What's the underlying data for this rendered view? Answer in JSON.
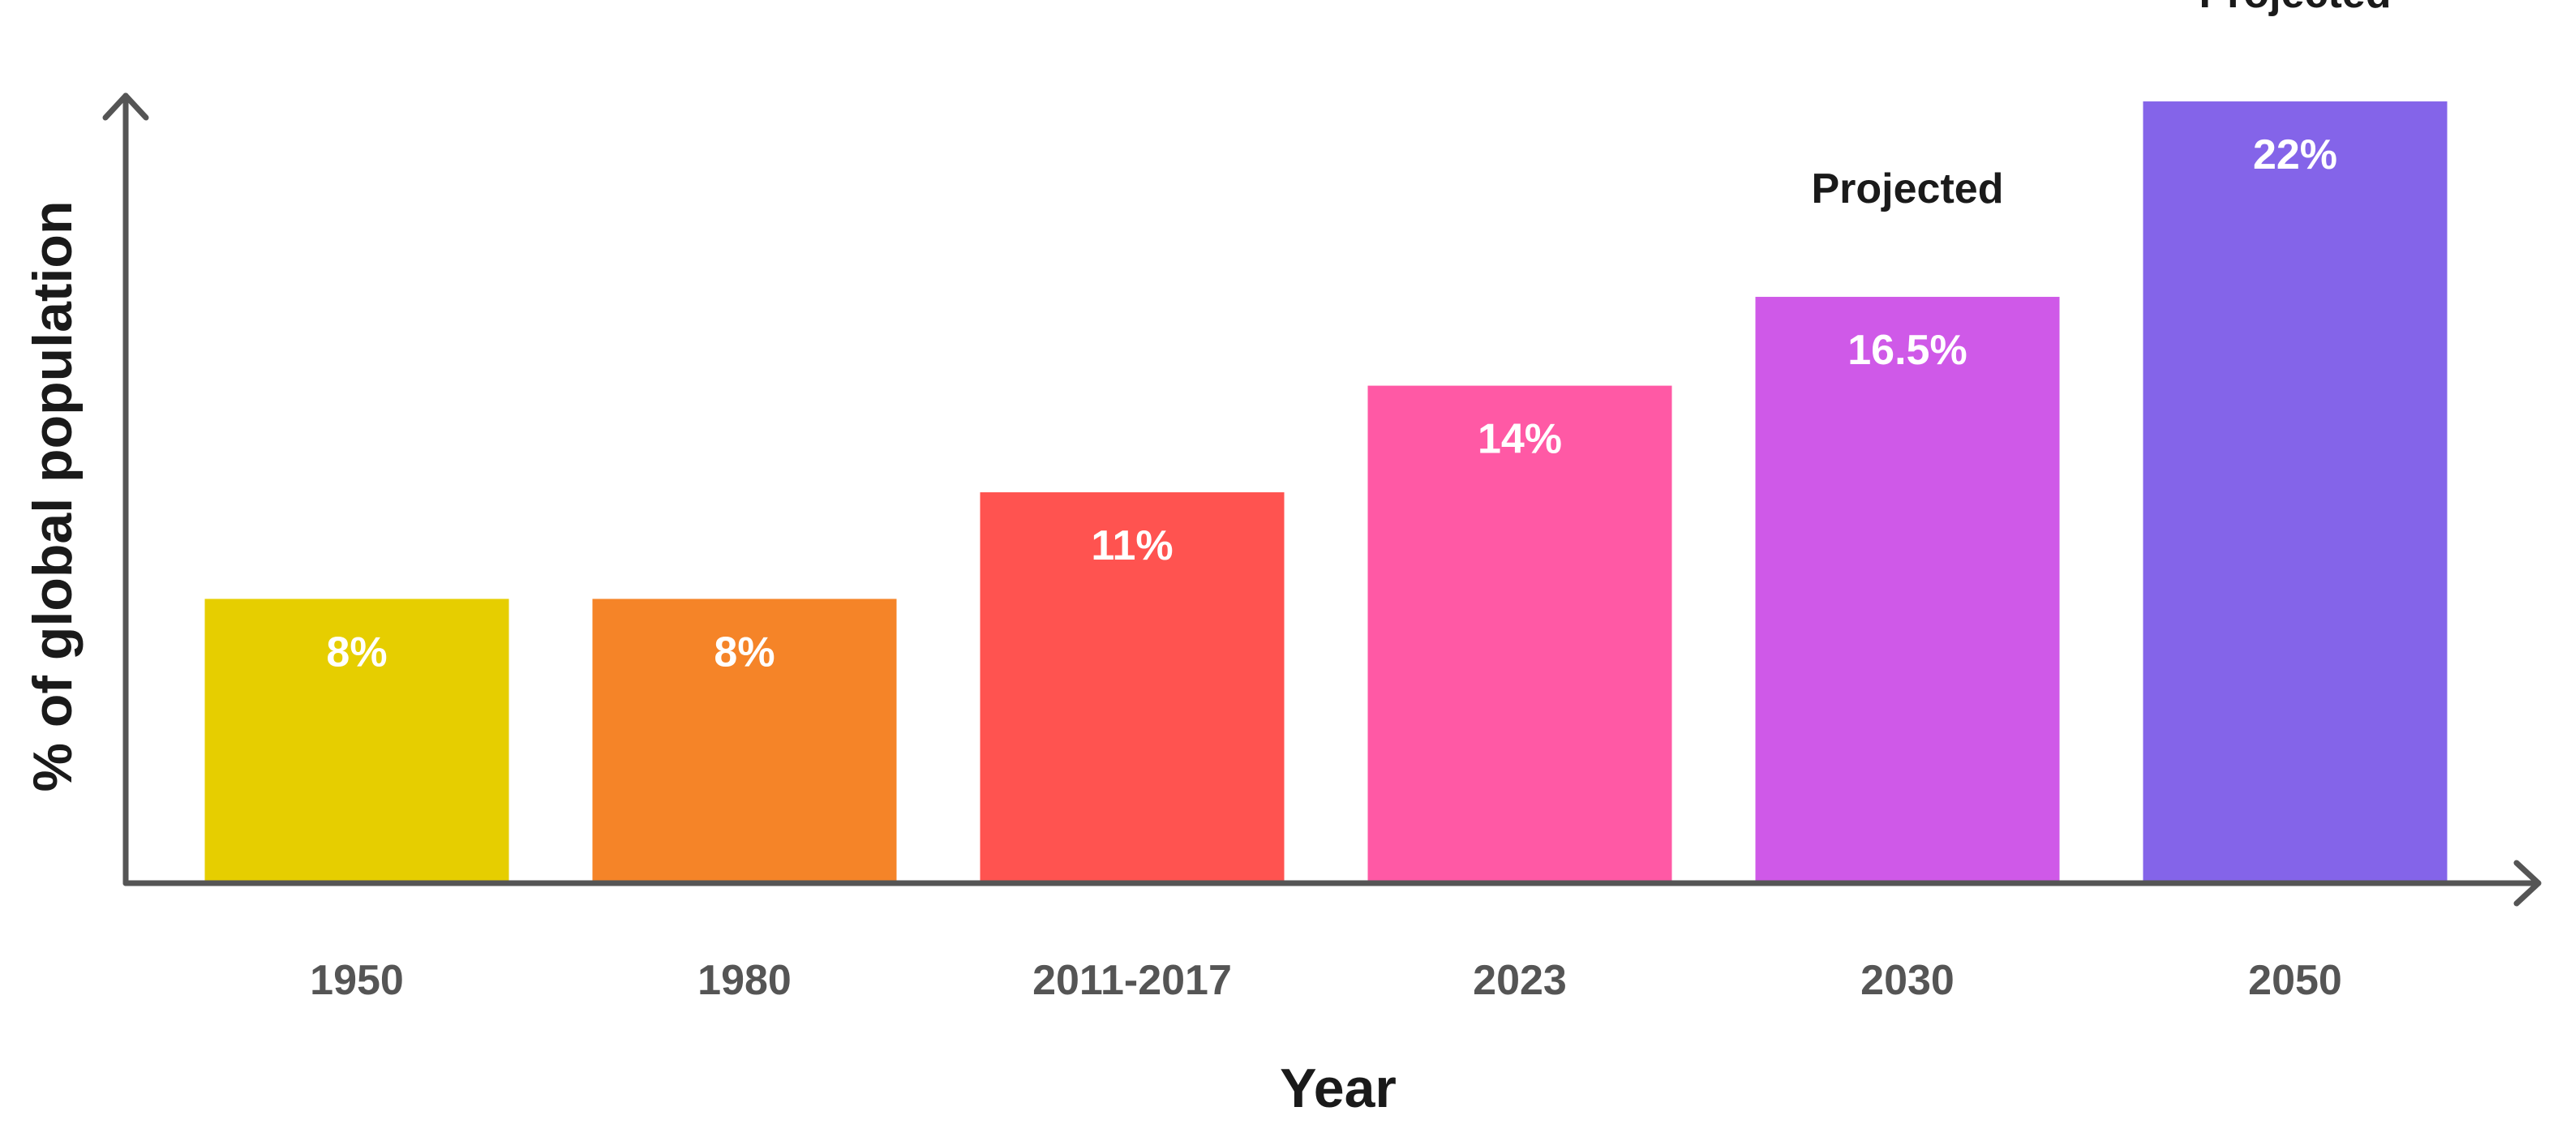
{
  "chart_data": {
    "type": "bar",
    "categories": [
      "1950",
      "1980",
      "2011-2017",
      "2023",
      "2030",
      "2050"
    ],
    "values": [
      8,
      8,
      11,
      14,
      16.5,
      22
    ],
    "value_labels": [
      "8%",
      "8%",
      "11%",
      "14%",
      "16.5%",
      "22%"
    ],
    "annotations": [
      "",
      "",
      "",
      "",
      "Projected",
      "Projected"
    ],
    "colors": [
      "#E6CE00",
      "#F58428",
      "#FF5350",
      "#FF59A5",
      "#CF59E8",
      "#8464E9"
    ],
    "xlabel": "Year",
    "ylabel": "% of global population",
    "ylim": [
      0,
      22.8
    ],
    "grid": false,
    "legend": "none",
    "axis_color": "#555555",
    "tick_label_color": "#555555",
    "value_label_color": "#FFFFFF",
    "text_color": "#1A1A1A"
  }
}
